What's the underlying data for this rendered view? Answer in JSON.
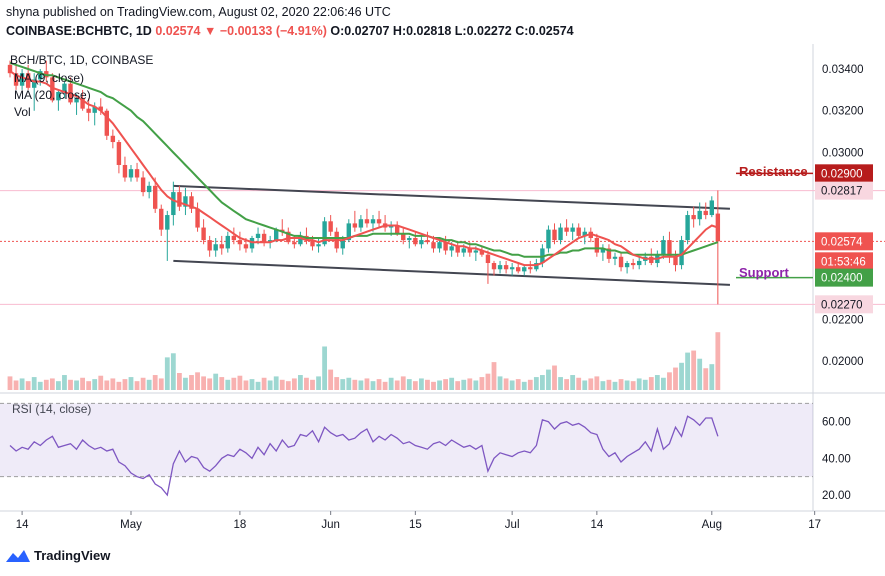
{
  "header": {
    "line1": "shyna published on TradingView.com, August 02, 2020 22:06:46 UTC",
    "symbol": "COINBASE:BCHBTC, 1D",
    "last": "0.02574",
    "arrow": "▼",
    "change": "−0.00133 (−4.91%)",
    "ohlc": "O:0.02707 H:0.02818 L:0.02272 C:0.02574"
  },
  "legend": {
    "pair": "BCH/BTC, 1D, COINBASE",
    "ma1": "MA (9, close)",
    "ma2": "MA (20, close)",
    "vol": "Vol"
  },
  "annotations": {
    "resistance": "Resistance",
    "support": "Support"
  },
  "rsi_label": "RSI (14, close)",
  "footer": {
    "brand": "TradingView"
  },
  "price_axis": {
    "ticks": [
      "0.03400",
      "0.03200",
      "0.03000",
      "0.02200",
      "0.02000"
    ],
    "badges": {
      "resistance": "0.02900",
      "high": "0.02817",
      "last": "0.02574",
      "countdown": "01:53:46",
      "support": "0.02400",
      "low": "0.02270"
    }
  },
  "rsi_axis": {
    "ticks": [
      "60.00",
      "40.00",
      "20.00"
    ]
  },
  "time_axis": [
    "14",
    "May",
    "18",
    "Jun",
    "15",
    "Jul",
    "14",
    "Aug",
    "17"
  ],
  "colors": {
    "up": "#26a69a",
    "down": "#ef5350",
    "ma9": "#ef5350",
    "ma20": "#43a047",
    "resistance": "#b71c1c",
    "support": "#43a047",
    "rsi": "#7e57c2",
    "channel": "#434651"
  },
  "chart_data": {
    "type": "candlestick",
    "title": "BCH/BTC, 1D, COINBASE",
    "ylim": [
      0.0189,
      0.0352
    ],
    "rsi_lim": [
      14,
      74
    ],
    "candles": [
      [
        0.0342,
        0.0344,
        0.0336,
        0.0338
      ],
      [
        0.0338,
        0.0342,
        0.033,
        0.0332
      ],
      [
        0.0332,
        0.034,
        0.033,
        0.0338
      ],
      [
        0.0338,
        0.0342,
        0.033,
        0.0331
      ],
      [
        0.0331,
        0.0338,
        0.032,
        0.0335
      ],
      [
        0.0335,
        0.034,
        0.0332,
        0.0339
      ],
      [
        0.0339,
        0.0344,
        0.0334,
        0.0336
      ],
      [
        0.0336,
        0.0338,
        0.0324,
        0.0325
      ],
      [
        0.0325,
        0.033,
        0.032,
        0.0329
      ],
      [
        0.0329,
        0.0334,
        0.0326,
        0.0333
      ],
      [
        0.0333,
        0.0336,
        0.0323,
        0.0324
      ],
      [
        0.0324,
        0.0328,
        0.0318,
        0.0326
      ],
      [
        0.0326,
        0.033,
        0.032,
        0.0321
      ],
      [
        0.0321,
        0.0326,
        0.0315,
        0.0319
      ],
      [
        0.0319,
        0.0324,
        0.0313,
        0.0322
      ],
      [
        0.0322,
        0.0326,
        0.0318,
        0.032
      ],
      [
        0.032,
        0.0321,
        0.0306,
        0.0308
      ],
      [
        0.0308,
        0.0311,
        0.0302,
        0.0305
      ],
      [
        0.0305,
        0.0306,
        0.029,
        0.0294
      ],
      [
        0.0294,
        0.0298,
        0.0286,
        0.0288
      ],
      [
        0.0288,
        0.0294,
        0.0286,
        0.0292
      ],
      [
        0.0292,
        0.0295,
        0.0286,
        0.0288
      ],
      [
        0.0288,
        0.0291,
        0.0279,
        0.0281
      ],
      [
        0.0281,
        0.0286,
        0.0278,
        0.0284
      ],
      [
        0.0284,
        0.0288,
        0.0271,
        0.0273
      ],
      [
        0.0273,
        0.0275,
        0.026,
        0.0263
      ],
      [
        0.0263,
        0.0272,
        0.0248,
        0.027
      ],
      [
        0.027,
        0.0286,
        0.0265,
        0.0281
      ],
      [
        0.0281,
        0.0284,
        0.0272,
        0.0274
      ],
      [
        0.0274,
        0.0283,
        0.027,
        0.0279
      ],
      [
        0.0279,
        0.0281,
        0.0271,
        0.0273
      ],
      [
        0.0273,
        0.0276,
        0.0262,
        0.0264
      ],
      [
        0.0264,
        0.0268,
        0.0256,
        0.0258
      ],
      [
        0.0258,
        0.026,
        0.025,
        0.0253
      ],
      [
        0.0253,
        0.0259,
        0.025,
        0.0256
      ],
      [
        0.0256,
        0.026,
        0.0251,
        0.0254
      ],
      [
        0.0254,
        0.0262,
        0.0252,
        0.026
      ],
      [
        0.026,
        0.0264,
        0.0256,
        0.0258
      ],
      [
        0.0258,
        0.0262,
        0.0253,
        0.0256
      ],
      [
        0.0256,
        0.0259,
        0.0252,
        0.0254
      ],
      [
        0.0254,
        0.026,
        0.0252,
        0.0259
      ],
      [
        0.0259,
        0.0264,
        0.0256,
        0.0261
      ],
      [
        0.0261,
        0.0263,
        0.0255,
        0.0257
      ],
      [
        0.0257,
        0.026,
        0.0254,
        0.0258
      ],
      [
        0.0258,
        0.0264,
        0.0257,
        0.0263
      ],
      [
        0.0263,
        0.0268,
        0.026,
        0.0262
      ],
      [
        0.0262,
        0.0264,
        0.0256,
        0.0257
      ],
      [
        0.0257,
        0.026,
        0.0254,
        0.0256
      ],
      [
        0.0256,
        0.0262,
        0.0255,
        0.026
      ],
      [
        0.026,
        0.0264,
        0.0256,
        0.0258
      ],
      [
        0.0258,
        0.026,
        0.0253,
        0.0255
      ],
      [
        0.0255,
        0.0259,
        0.0252,
        0.0256
      ],
      [
        0.0256,
        0.0269,
        0.0255,
        0.0267
      ],
      [
        0.0267,
        0.027,
        0.026,
        0.0262
      ],
      [
        0.0262,
        0.0264,
        0.0252,
        0.0254
      ],
      [
        0.0254,
        0.026,
        0.0251,
        0.0258
      ],
      [
        0.0258,
        0.0268,
        0.0257,
        0.0266
      ],
      [
        0.0266,
        0.0272,
        0.0262,
        0.0264
      ],
      [
        0.0264,
        0.027,
        0.0262,
        0.0268
      ],
      [
        0.0268,
        0.0273,
        0.0264,
        0.0266
      ],
      [
        0.0266,
        0.027,
        0.0262,
        0.0268
      ],
      [
        0.0268,
        0.0272,
        0.0264,
        0.0266
      ],
      [
        0.0266,
        0.027,
        0.0262,
        0.0264
      ],
      [
        0.0264,
        0.0267,
        0.026,
        0.0265
      ],
      [
        0.0265,
        0.0267,
        0.026,
        0.0261
      ],
      [
        0.0261,
        0.0264,
        0.0256,
        0.0258
      ],
      [
        0.0258,
        0.026,
        0.0254,
        0.0259
      ],
      [
        0.0259,
        0.0262,
        0.0255,
        0.0256
      ],
      [
        0.0256,
        0.026,
        0.0254,
        0.0258
      ],
      [
        0.0258,
        0.0262,
        0.0256,
        0.0257
      ],
      [
        0.0257,
        0.026,
        0.0252,
        0.0254
      ],
      [
        0.0254,
        0.0259,
        0.0252,
        0.0257
      ],
      [
        0.0257,
        0.026,
        0.0251,
        0.0253
      ],
      [
        0.0253,
        0.0257,
        0.025,
        0.0255
      ],
      [
        0.0255,
        0.0257,
        0.025,
        0.0252
      ],
      [
        0.0252,
        0.0256,
        0.025,
        0.0254
      ],
      [
        0.0254,
        0.0257,
        0.025,
        0.0252
      ],
      [
        0.0252,
        0.0255,
        0.0248,
        0.0253
      ],
      [
        0.0253,
        0.0255,
        0.025,
        0.0251
      ],
      [
        0.0251,
        0.0253,
        0.0237,
        0.0247
      ],
      [
        0.0247,
        0.0248,
        0.0241,
        0.0244
      ],
      [
        0.0244,
        0.0248,
        0.0242,
        0.0246
      ],
      [
        0.0246,
        0.0248,
        0.0242,
        0.0244
      ],
      [
        0.0244,
        0.0247,
        0.0241,
        0.0245
      ],
      [
        0.0245,
        0.0247,
        0.0242,
        0.0243
      ],
      [
        0.0243,
        0.0246,
        0.0241,
        0.0245
      ],
      [
        0.0245,
        0.0248,
        0.0242,
        0.0244
      ],
      [
        0.0244,
        0.0249,
        0.0243,
        0.0247
      ],
      [
        0.0247,
        0.0256,
        0.0245,
        0.0254
      ],
      [
        0.0254,
        0.0265,
        0.0252,
        0.0263
      ],
      [
        0.0263,
        0.0266,
        0.0256,
        0.0258
      ],
      [
        0.0258,
        0.0266,
        0.0256,
        0.0264
      ],
      [
        0.0264,
        0.0268,
        0.026,
        0.0262
      ],
      [
        0.0262,
        0.0266,
        0.0258,
        0.0264
      ],
      [
        0.0264,
        0.0266,
        0.0259,
        0.026
      ],
      [
        0.026,
        0.0264,
        0.0256,
        0.0262
      ],
      [
        0.0262,
        0.0264,
        0.0257,
        0.0259
      ],
      [
        0.0259,
        0.0261,
        0.025,
        0.0252
      ],
      [
        0.0252,
        0.0256,
        0.0248,
        0.0254
      ],
      [
        0.0254,
        0.0256,
        0.0247,
        0.0249
      ],
      [
        0.0249,
        0.0252,
        0.0246,
        0.025
      ],
      [
        0.025,
        0.0252,
        0.0243,
        0.0245
      ],
      [
        0.0245,
        0.0248,
        0.0242,
        0.0247
      ],
      [
        0.0247,
        0.0249,
        0.0244,
        0.0246
      ],
      [
        0.0246,
        0.025,
        0.0244,
        0.0248
      ],
      [
        0.0248,
        0.0252,
        0.0246,
        0.025
      ],
      [
        0.025,
        0.0254,
        0.0246,
        0.0247
      ],
      [
        0.0247,
        0.0253,
        0.0245,
        0.0251
      ],
      [
        0.0251,
        0.026,
        0.0249,
        0.0258
      ],
      [
        0.0258,
        0.0262,
        0.0247,
        0.025
      ],
      [
        0.025,
        0.0253,
        0.0243,
        0.0246
      ],
      [
        0.0246,
        0.026,
        0.0244,
        0.0258
      ],
      [
        0.0258,
        0.0272,
        0.0256,
        0.027
      ],
      [
        0.027,
        0.0274,
        0.0264,
        0.0268
      ],
      [
        0.0268,
        0.0276,
        0.0265,
        0.0272
      ],
      [
        0.0272,
        0.0276,
        0.0268,
        0.027
      ],
      [
        0.027,
        0.0279,
        0.0269,
        0.0277
      ],
      [
        0.02707,
        0.02818,
        0.02272,
        0.02574
      ]
    ],
    "ma9": [
      0.0339,
      0.0337,
      0.0336,
      0.0335,
      0.0334,
      0.0334,
      0.0333,
      0.0331,
      0.033,
      0.0329,
      0.0328,
      0.0327,
      0.0325,
      0.0323,
      0.0322,
      0.032,
      0.0317,
      0.0314,
      0.031,
      0.0306,
      0.0302,
      0.0298,
      0.0294,
      0.029,
      0.0286,
      0.0282,
      0.0279,
      0.0277,
      0.0276,
      0.0275,
      0.0274,
      0.0273,
      0.0271,
      0.0269,
      0.0267,
      0.0265,
      0.0263,
      0.0261,
      0.0259,
      0.0258,
      0.0257,
      0.0257,
      0.0257,
      0.0257,
      0.0258,
      0.0258,
      0.0259,
      0.0259,
      0.0259,
      0.0258,
      0.0258,
      0.0257,
      0.0258,
      0.0258,
      0.0258,
      0.0258,
      0.0259,
      0.026,
      0.0261,
      0.0262,
      0.0263,
      0.0264,
      0.0265,
      0.0265,
      0.0265,
      0.0264,
      0.0263,
      0.0262,
      0.0261,
      0.026,
      0.0259,
      0.0258,
      0.0257,
      0.0256,
      0.0255,
      0.0255,
      0.0254,
      0.0254,
      0.0253,
      0.0252,
      0.0251,
      0.025,
      0.0249,
      0.0248,
      0.0247,
      0.0246,
      0.0246,
      0.0246,
      0.0247,
      0.0249,
      0.0251,
      0.0253,
      0.0255,
      0.0257,
      0.0259,
      0.026,
      0.0261,
      0.026,
      0.0259,
      0.0258,
      0.0256,
      0.0255,
      0.0253,
      0.0251,
      0.025,
      0.0249,
      0.0249,
      0.0249,
      0.025,
      0.025,
      0.025,
      0.0251,
      0.0254,
      0.0257,
      0.026,
      0.0263,
      0.0265,
      0.0264
    ],
    "ma20": [
      0.0343,
      0.0342,
      0.0341,
      0.034,
      0.0339,
      0.0338,
      0.0337,
      0.0337,
      0.0336,
      0.0335,
      0.0334,
      0.0333,
      0.0332,
      0.0331,
      0.033,
      0.0329,
      0.0327,
      0.0326,
      0.0324,
      0.0322,
      0.032,
      0.0317,
      0.0315,
      0.0312,
      0.0309,
      0.0306,
      0.0303,
      0.03,
      0.0297,
      0.0294,
      0.0291,
      0.0288,
      0.0285,
      0.0282,
      0.0279,
      0.0276,
      0.0274,
      0.0272,
      0.027,
      0.0268,
      0.0267,
      0.0266,
      0.0265,
      0.0264,
      0.0263,
      0.0262,
      0.0261,
      0.026,
      0.026,
      0.0259,
      0.0259,
      0.0259,
      0.0259,
      0.0259,
      0.0259,
      0.0259,
      0.0259,
      0.026,
      0.026,
      0.026,
      0.0261,
      0.0261,
      0.0261,
      0.0261,
      0.0261,
      0.0261,
      0.0261,
      0.026,
      0.026,
      0.026,
      0.0259,
      0.0259,
      0.0258,
      0.0258,
      0.0257,
      0.0257,
      0.0256,
      0.0256,
      0.0255,
      0.0254,
      0.0253,
      0.0253,
      0.0252,
      0.0251,
      0.0251,
      0.025,
      0.025,
      0.025,
      0.025,
      0.0251,
      0.0251,
      0.0252,
      0.0252,
      0.0253,
      0.0253,
      0.0254,
      0.0254,
      0.0254,
      0.0254,
      0.0253,
      0.0253,
      0.0252,
      0.0252,
      0.0251,
      0.0251,
      0.0251,
      0.0251,
      0.0251,
      0.0251,
      0.0251,
      0.0251,
      0.0251,
      0.0252,
      0.0253,
      0.0254,
      0.0255,
      0.0256,
      0.0257
    ],
    "volume": [
      0.2,
      0.14,
      0.17,
      0.13,
      0.19,
      0.12,
      0.15,
      0.17,
      0.13,
      0.22,
      0.15,
      0.14,
      0.18,
      0.13,
      0.16,
      0.21,
      0.14,
      0.17,
      0.12,
      0.16,
      0.19,
      0.13,
      0.18,
      0.15,
      0.22,
      0.17,
      0.48,
      0.54,
      0.25,
      0.18,
      0.22,
      0.26,
      0.2,
      0.17,
      0.24,
      0.19,
      0.15,
      0.18,
      0.21,
      0.14,
      0.16,
      0.12,
      0.18,
      0.14,
      0.2,
      0.15,
      0.13,
      0.17,
      0.22,
      0.18,
      0.15,
      0.2,
      0.64,
      0.3,
      0.19,
      0.16,
      0.18,
      0.15,
      0.14,
      0.17,
      0.13,
      0.16,
      0.12,
      0.18,
      0.14,
      0.2,
      0.16,
      0.13,
      0.17,
      0.15,
      0.12,
      0.14,
      0.16,
      0.18,
      0.13,
      0.15,
      0.17,
      0.14,
      0.19,
      0.24,
      0.41,
      0.2,
      0.17,
      0.14,
      0.16,
      0.12,
      0.15,
      0.19,
      0.22,
      0.3,
      0.36,
      0.19,
      0.16,
      0.22,
      0.18,
      0.14,
      0.17,
      0.2,
      0.13,
      0.15,
      0.12,
      0.16,
      0.14,
      0.13,
      0.17,
      0.15,
      0.19,
      0.22,
      0.18,
      0.26,
      0.33,
      0.4,
      0.55,
      0.58,
      0.46,
      0.32,
      0.38,
      0.85
    ],
    "rsi": [
      47,
      44,
      46,
      45,
      49,
      47,
      50,
      52,
      46,
      47,
      48,
      45,
      50,
      47,
      45,
      46,
      44,
      45,
      38,
      36,
      32,
      30,
      29,
      31,
      26,
      24,
      20,
      37,
      44,
      38,
      41,
      40,
      35,
      33,
      36,
      40,
      42,
      41,
      45,
      43,
      40,
      46,
      42,
      48,
      44,
      50,
      46,
      47,
      53,
      52,
      55,
      49,
      57,
      54,
      52,
      53,
      50,
      51,
      54,
      56,
      49,
      52,
      50,
      53,
      51,
      48,
      49,
      47,
      46,
      45,
      48,
      49,
      47,
      50,
      48,
      46,
      47,
      45,
      47,
      33,
      40,
      43,
      42,
      41,
      43,
      44,
      43,
      47,
      61,
      60,
      56,
      59,
      60,
      58,
      59,
      57,
      54,
      53,
      45,
      41,
      43,
      38,
      41,
      43,
      45,
      49,
      44,
      56,
      45,
      48,
      57,
      52,
      63,
      61,
      58,
      62,
      62,
      52
    ]
  }
}
